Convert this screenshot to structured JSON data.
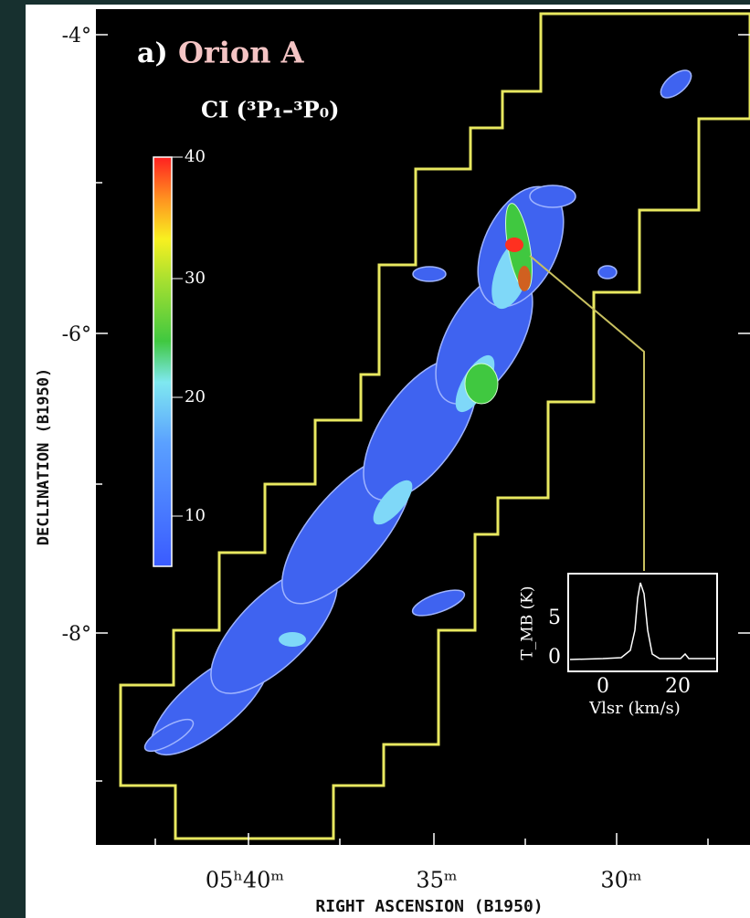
{
  "figure": {
    "panel_label": "a)",
    "title": "Orion A",
    "line_label": "CI (³P₁–³P₀)",
    "colorbar_ticks": [
      "40",
      "30",
      "20",
      "10"
    ],
    "y_axis": {
      "label": "DECLINATION (B1950)",
      "ticks": [
        "-4°",
        "-6°",
        "-8°"
      ]
    },
    "x_axis": {
      "label": "RIGHT ASCENSION (B1950)",
      "ticks": [
        "05ʰ40ᵐ",
        "35ᵐ",
        "30ᵐ"
      ]
    },
    "inset": {
      "y_label": "T_MB (K)",
      "y_ticks": [
        "5",
        "0"
      ],
      "x_ticks": [
        "0",
        "20"
      ],
      "x_label": "Vlsr (km/s)"
    }
  }
}
